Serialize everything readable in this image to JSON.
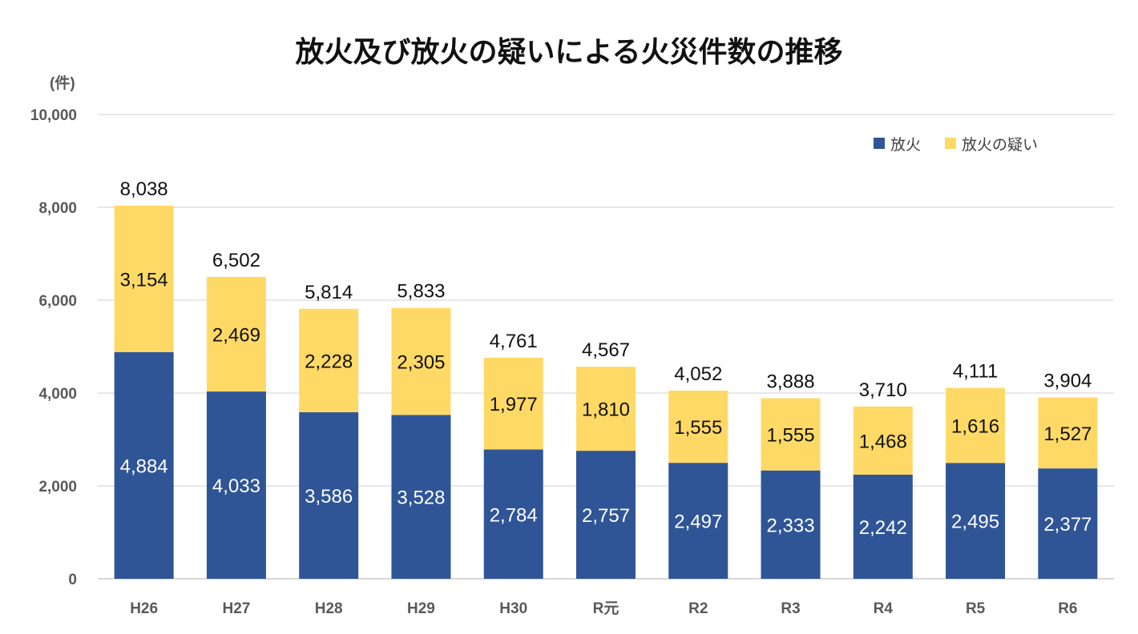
{
  "chart_data": {
    "type": "bar",
    "stacked": true,
    "title": "放火及び放火の疑いによる火災件数の推移",
    "ylabel": "(件)",
    "xlabel": "",
    "ylim": [
      0,
      10000
    ],
    "yticks": [
      "0",
      "2,000",
      "4,000",
      "6,000",
      "8,000",
      "10,000"
    ],
    "ytick_values": [
      0,
      2000,
      4000,
      6000,
      8000,
      10000
    ],
    "grid": true,
    "legend_position": "top-right",
    "categories": [
      "H26",
      "H27",
      "H28",
      "H29",
      "H30",
      "R元",
      "R2",
      "R3",
      "R4",
      "R5",
      "R6"
    ],
    "series": [
      {
        "name": "放火",
        "color": "#2F5597",
        "values": [
          4884,
          4033,
          3586,
          3528,
          2784,
          2757,
          2497,
          2333,
          2242,
          2495,
          2377
        ],
        "labels": [
          "4,884",
          "4,033",
          "3,586",
          "3,528",
          "2,784",
          "2,757",
          "2,497",
          "2,333",
          "2,242",
          "2,495",
          "2,377"
        ]
      },
      {
        "name": "放火の疑い",
        "color": "#FFD966",
        "values": [
          3154,
          2469,
          2228,
          2305,
          1977,
          1810,
          1555,
          1555,
          1468,
          1616,
          1527
        ],
        "labels": [
          "3,154",
          "2,469",
          "2,228",
          "2,305",
          "1,977",
          "1,810",
          "1,555",
          "1,555",
          "1,468",
          "1,616",
          "1,527"
        ]
      }
    ],
    "totals": [
      8038,
      6502,
      5814,
      5833,
      4761,
      4567,
      4052,
      3888,
      3710,
      4111,
      3904
    ],
    "total_labels": [
      "8,038",
      "6,502",
      "5,814",
      "5,833",
      "4,761",
      "4,567",
      "4,052",
      "3,888",
      "3,710",
      "4,111",
      "3,904"
    ]
  }
}
